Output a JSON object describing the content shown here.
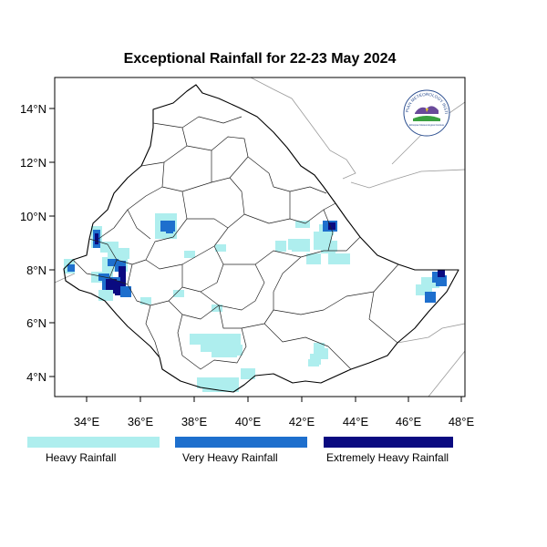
{
  "title": "Exceptional Rainfall for 22-23 May 2024",
  "x_ticks": [
    "34°E",
    "36°E",
    "38°E",
    "40°E",
    "42°E",
    "44°E",
    "46°E",
    "48°E"
  ],
  "y_ticks": [
    "4°N",
    "6°N",
    "8°N",
    "10°N",
    "12°N",
    "14°N"
  ],
  "extent": {
    "lon": [
      32.2,
      48.2
    ],
    "lat": [
      3.3,
      15.0
    ]
  },
  "legend": [
    {
      "label": "Heavy Rainfall",
      "color": "#aeeeee"
    },
    {
      "label": "Very Heavy Rainfall",
      "color": "#1e6fcd"
    },
    {
      "label": "Extremely Heavy Rainfall",
      "color": "#0a0a80"
    }
  ],
  "colors": {
    "country_border": "#000000",
    "region_border": "#222222",
    "neighbor_border": "#9a9a9a"
  },
  "logo": {
    "arc_text": "ETHIOPIAN METEOROLOGY INSTITUTE",
    "sub_text": "Ethiopian Meteorological Institute",
    "icon": "emi-logo"
  }
}
